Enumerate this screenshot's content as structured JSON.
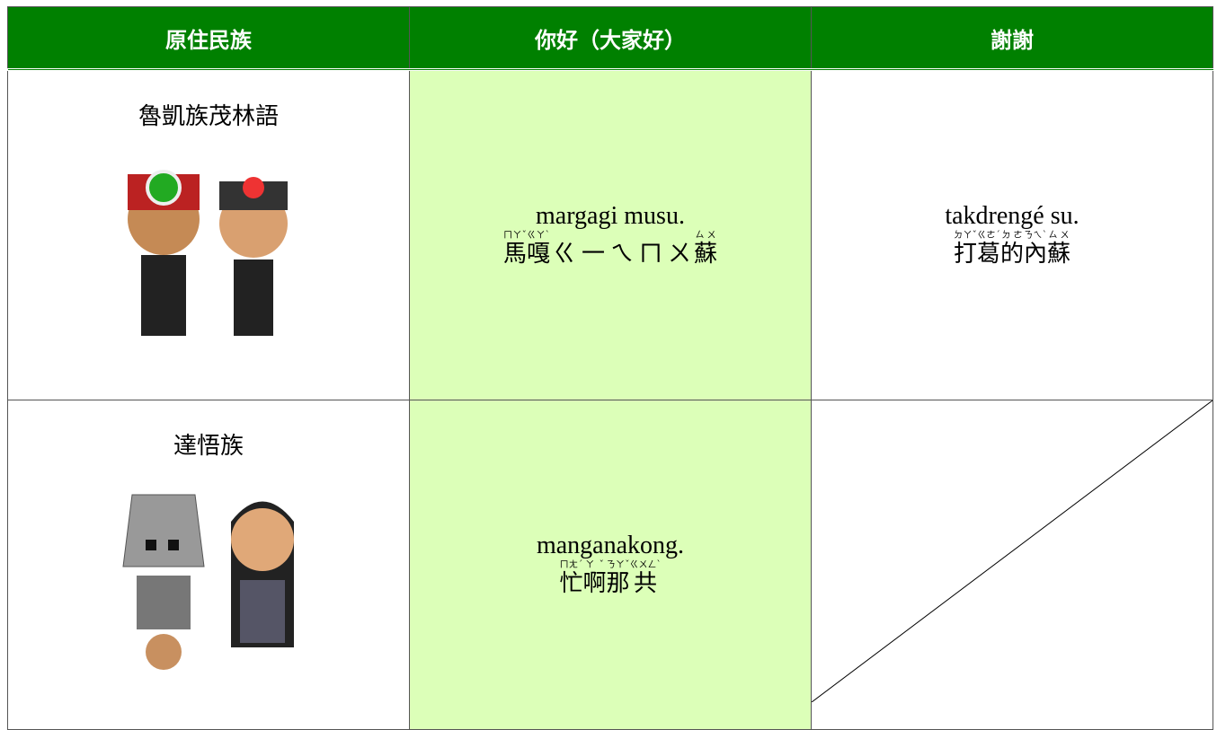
{
  "header": [
    "原住民族",
    "你好（大家好）",
    "謝謝"
  ],
  "rows": [
    {
      "tribe": "魯凱族茂林語",
      "hello": {
        "romanized": "margagi musu.",
        "zhuyin": [
          {
            "char": "馬",
            "ruby": "ㄇㄚˇ"
          },
          {
            "char": "嘎",
            "ruby": "ㄍㄚˋ"
          },
          {
            "char": "ㄍ"
          },
          {
            "char": "一"
          },
          {
            "char": "ㄟ"
          },
          {
            "char": "ㄇ"
          },
          {
            "char": "ㄨ"
          },
          {
            "char": "蘇",
            "ruby": "ㄙㄨ"
          }
        ]
      },
      "thanks": {
        "romanized": "takdrengé su.",
        "zhuyin": [
          {
            "char": "打",
            "ruby": "ㄉㄚˇ"
          },
          {
            "char": "葛",
            "ruby": "ㄍㄜˊ"
          },
          {
            "char": "的",
            "ruby": "ㄉㄜ"
          },
          {
            "char": "內",
            "ruby": "ㄋㄟˋ"
          },
          {
            "char": "蘇",
            "ruby": "ㄙㄨ"
          }
        ]
      }
    },
    {
      "tribe": "達悟族",
      "hello": {
        "romanized": "manganakong.",
        "zhuyin": [
          {
            "char": "忙",
            "ruby": "ㄇㄤˊ"
          },
          {
            "char": "啊",
            "ruby": "ㄚˇ"
          },
          {
            "char": "那",
            "ruby": "ㄋㄚˇ"
          },
          {
            "char": "共",
            "ruby": "ㄍㄨㄥˋ"
          }
        ]
      }
    }
  ]
}
